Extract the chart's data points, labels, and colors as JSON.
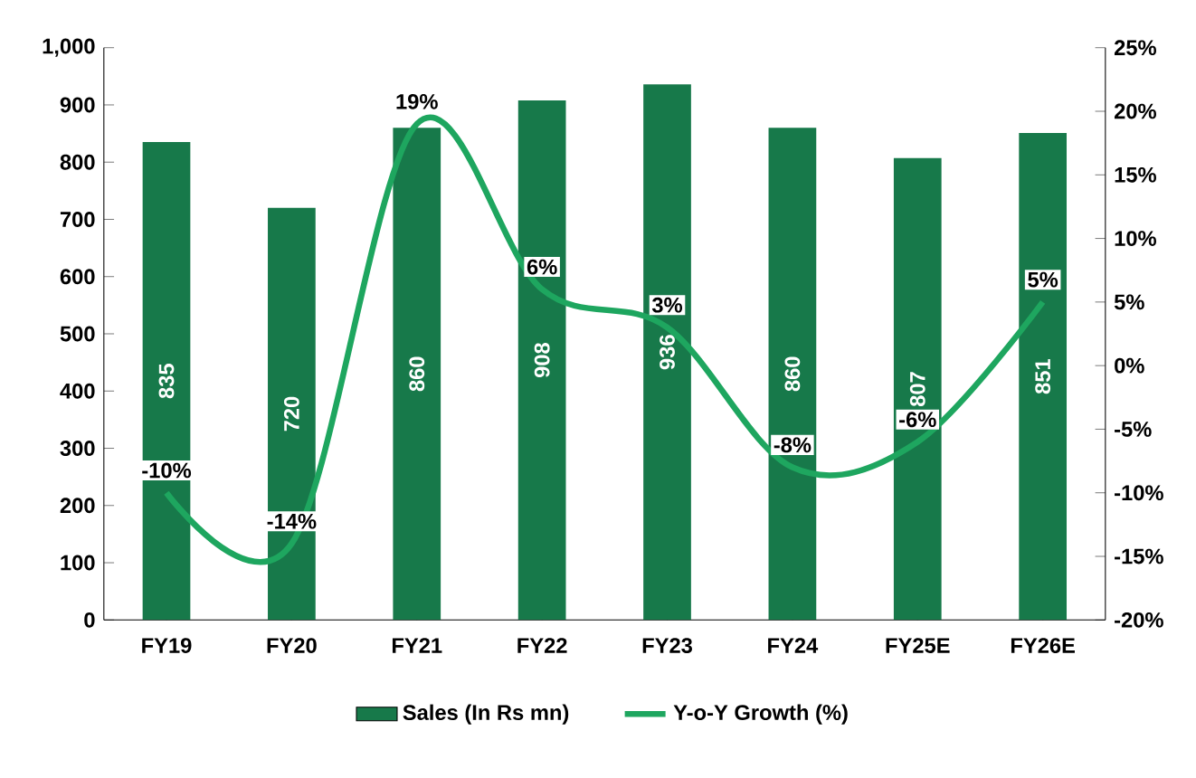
{
  "chart_data": {
    "type": "bar",
    "categories": [
      "FY19",
      "FY20",
      "FY21",
      "FY22",
      "FY23",
      "FY24",
      "FY25E",
      "FY26E"
    ],
    "series": [
      {
        "name": "Sales (In Rs mn)",
        "color": "#17794a",
        "values": [
          835,
          720,
          860,
          908,
          936,
          860,
          807,
          851
        ],
        "value_labels": [
          "835",
          "720",
          "860",
          "908",
          "936",
          "860",
          "807",
          "851"
        ]
      },
      {
        "name": "Y-o-Y Growth (%)",
        "type": "line",
        "axis": "y2",
        "color": "#1ea65f",
        "values": [
          -10,
          -14,
          19,
          6,
          3,
          -8,
          -6,
          5
        ],
        "value_labels": [
          "-10%",
          "-14%",
          "19%",
          "6%",
          "3%",
          "-8%",
          "-6%",
          "5%"
        ]
      }
    ],
    "ylim": [
      0,
      1000
    ],
    "yticks": [
      0,
      100,
      200,
      300,
      400,
      500,
      600,
      700,
      800,
      900,
      {
        "value": 1000,
        "label": "1,000"
      }
    ],
    "y2lim": [
      -20,
      25
    ],
    "y2ticks": [
      {
        "value": -20,
        "label": "-20%"
      },
      {
        "value": -15,
        "label": "-15%"
      },
      {
        "value": -10,
        "label": "-10%"
      },
      {
        "value": -5,
        "label": "-5%"
      },
      {
        "value": 0,
        "label": "0%"
      },
      {
        "value": 5,
        "label": "5%"
      },
      {
        "value": 10,
        "label": "10%"
      },
      {
        "value": 15,
        "label": "15%"
      },
      {
        "value": 20,
        "label": "20%"
      },
      {
        "value": 25,
        "label": "25%"
      }
    ],
    "grid": false,
    "legend": "bottom",
    "marker": "none",
    "line_style": "solid"
  }
}
